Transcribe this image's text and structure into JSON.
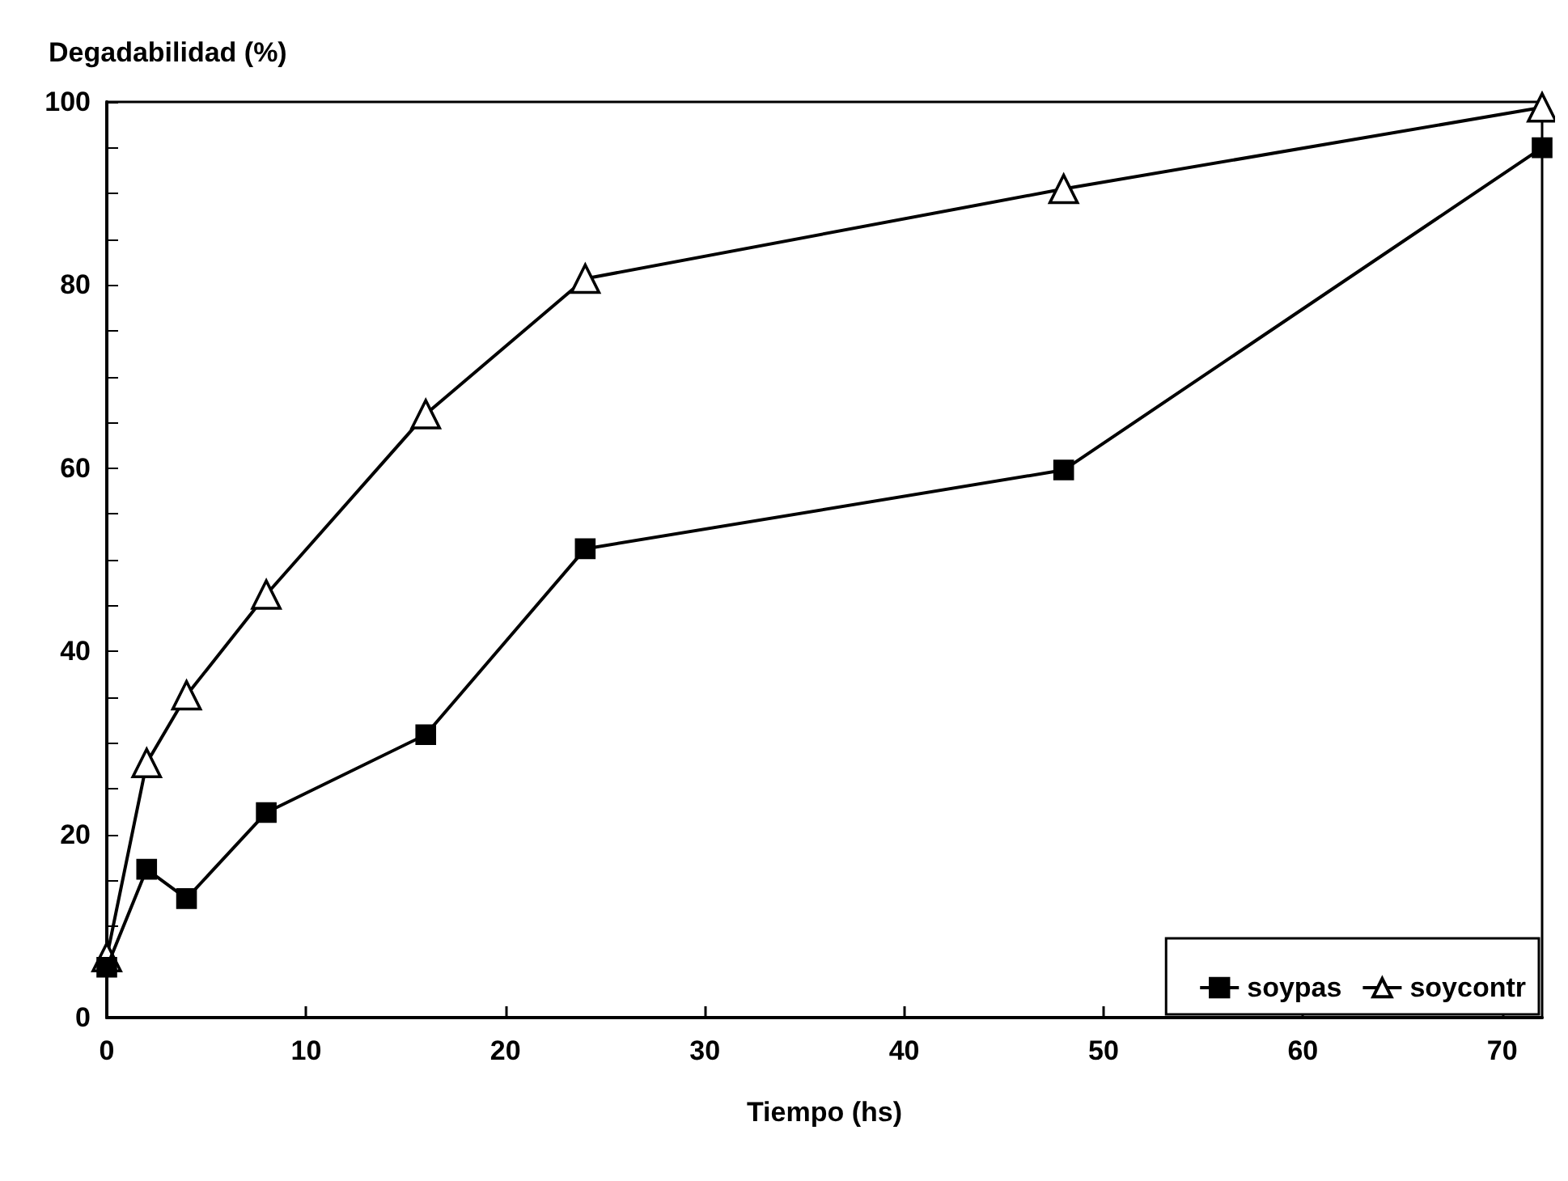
{
  "chart_data": {
    "type": "line",
    "xlabel": "Tiempo (hs)",
    "ylabel": "Degadabilidad (%)",
    "x": [
      0,
      2,
      4,
      8,
      16,
      24,
      48,
      72
    ],
    "series": [
      {
        "name": "soypas",
        "color": "#000000",
        "marker": "square",
        "values": [
          5.5,
          16.2,
          13,
          22.4,
          30.9,
          51.2,
          59.8,
          95
        ]
      },
      {
        "name": "soycontr",
        "color": "#000000",
        "marker": "triangle",
        "values": [
          6.6,
          27.8,
          35.2,
          46.2,
          65.9,
          80.7,
          90.5,
          99.4
        ]
      }
    ],
    "xlim": [
      0,
      72
    ],
    "xticks": [
      0,
      10,
      20,
      30,
      40,
      50,
      60,
      70
    ],
    "ylim": [
      0,
      100
    ],
    "yticks": [
      0,
      {
        "value": 5,
        "label": null
      },
      {
        "value": 10,
        "label": null
      },
      {
        "value": 15,
        "label": null
      },
      20,
      {
        "value": 25,
        "label": null
      },
      {
        "value": 30,
        "label": null
      },
      {
        "value": 35,
        "label": null
      },
      40,
      {
        "value": 45,
        "label": null
      },
      {
        "value": 50,
        "label": null
      },
      {
        "value": 55,
        "label": null
      },
      60,
      {
        "value": 65,
        "label": null
      },
      {
        "value": 70,
        "label": null
      },
      {
        "value": 75,
        "label": null
      },
      80,
      {
        "value": 85,
        "label": null
      },
      {
        "value": 90,
        "label": null
      },
      {
        "value": 95,
        "label": null
      },
      100
    ],
    "grid": false,
    "legend": "bottom right",
    "line_style": "solid"
  }
}
